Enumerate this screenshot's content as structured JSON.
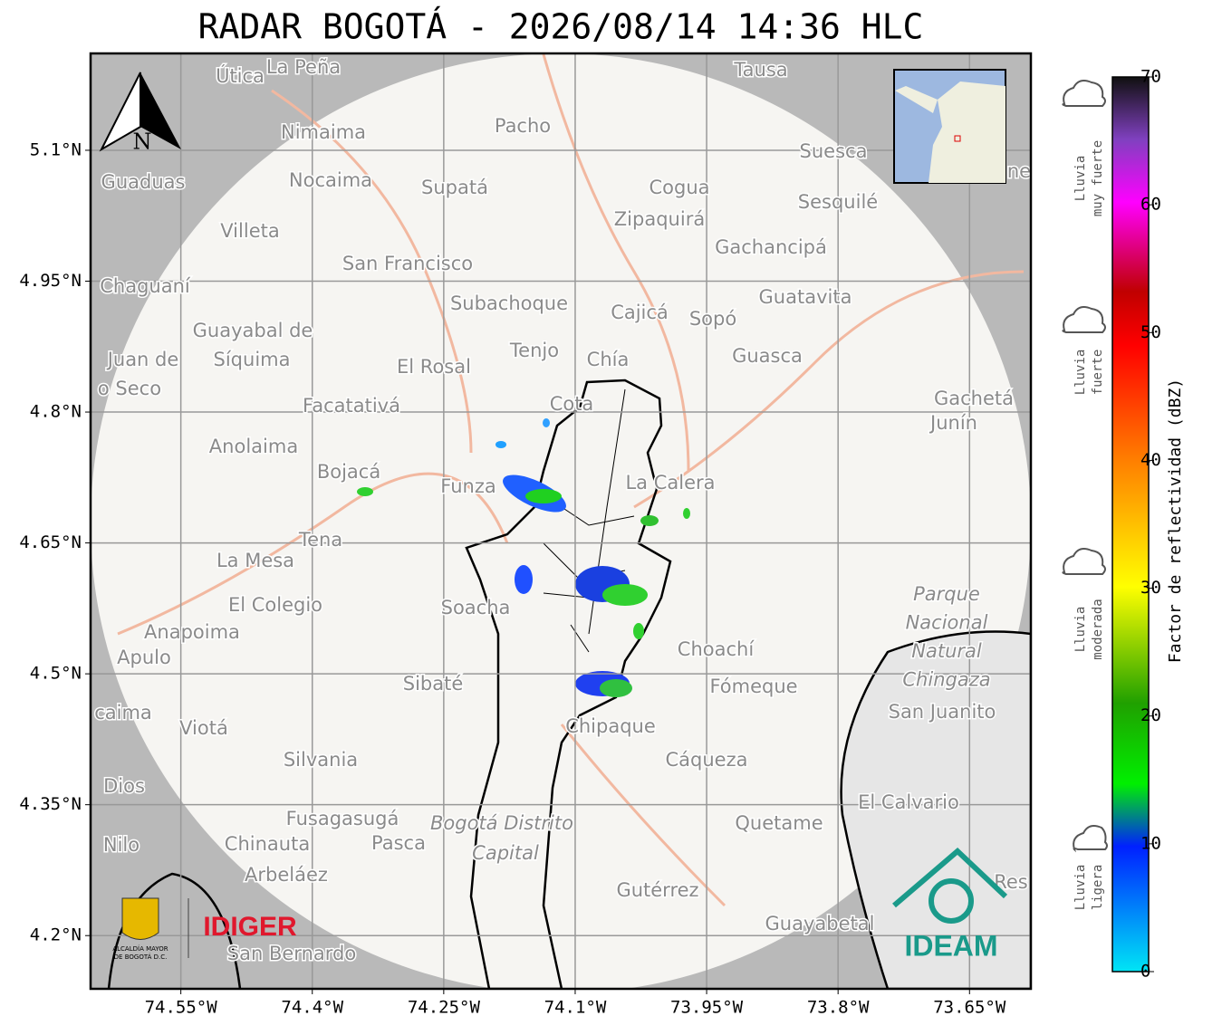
{
  "title": "RADAR BOGOTÁ - 2026/08/14 14:36 HLC",
  "map": {
    "xlim": [
      -74.653,
      -73.58
    ],
    "ylim": [
      4.139,
      5.211
    ],
    "xticks": [
      {
        "value": -74.55,
        "label": "74.55°W"
      },
      {
        "value": -74.4,
        "label": "74.4°W"
      },
      {
        "value": -74.25,
        "label": "74.25°W"
      },
      {
        "value": -74.1,
        "label": "74.1°W"
      },
      {
        "value": -73.95,
        "label": "73.95°W"
      },
      {
        "value": -73.8,
        "label": "73.8°W"
      },
      {
        "value": -73.65,
        "label": "73.65°W"
      }
    ],
    "yticks": [
      {
        "value": 5.1,
        "label": "5.1°N"
      },
      {
        "value": 4.95,
        "label": "4.95°N"
      },
      {
        "value": 4.8,
        "label": "4.8°N"
      },
      {
        "value": 4.65,
        "label": "4.65°N"
      },
      {
        "value": 4.5,
        "label": "4.5°N"
      },
      {
        "value": 4.35,
        "label": "4.35°N"
      },
      {
        "value": 4.2,
        "label": "4.2°N"
      }
    ],
    "places": [
      "Útica",
      "La Peña",
      "Tausa",
      "Pacho",
      "Nimaima",
      "Suesca",
      "Guaduas",
      "Nocaima",
      "Supatá",
      "Cogua",
      "Sesquilé",
      "Zipaquirá",
      "Villeta",
      "Gachancipá",
      "San Francisco",
      "Chaguaní",
      "Guatavita",
      "Subachoque",
      "Cajicá",
      "Sopó",
      "Guayabal de",
      "Síquima",
      "Tenjo",
      "Chía",
      "Guasca",
      "Juan de",
      "El Rosal",
      "o Seco",
      "Facatativá",
      "Cota",
      "Gachetá",
      "Junín",
      "Anolaima",
      "Bojacá",
      "Funza",
      "La Calera",
      "Tena",
      "La Mesa",
      "El Colegio",
      "Soacha",
      "Anapoima",
      "Apulo",
      "Choachí",
      "Sibaté",
      "Fómeque",
      "caima",
      "San Juanito",
      "Viotá",
      "Chipaque",
      "Silvania",
      "Cáqueza",
      "Dios",
      "El Calvario",
      "Fusagasugá",
      "Quetame",
      "Nilo",
      "Chinauta",
      "Pasca",
      "Arbeláez",
      "Gutérrez",
      "Res",
      "Guayabetal",
      "San Bernardo",
      "ne"
    ],
    "park": [
      "Parque",
      "Nacional",
      "Natural",
      "Chingaza"
    ],
    "district": [
      "Bogotá Distrito",
      "Capital"
    ],
    "north": "N"
  },
  "colorbar": {
    "label": "Factor de reflectividad (dBZ)",
    "lim": [
      0,
      70
    ],
    "ticks": [
      0,
      10,
      20,
      30,
      40,
      50,
      60,
      70
    ],
    "rain": [
      [
        "Lluvia",
        "muy fuerte"
      ],
      [
        "Lluvia",
        "fuerte"
      ],
      [
        "Lluvia",
        "moderada"
      ],
      [
        "Lluvia",
        "ligera"
      ]
    ]
  },
  "logos": {
    "idiger": "IDIGER",
    "ideam": "IDEAM",
    "alcaldia": [
      "ALCALDÍA MAYOR",
      "DE BOGOTÁ D.C."
    ]
  }
}
